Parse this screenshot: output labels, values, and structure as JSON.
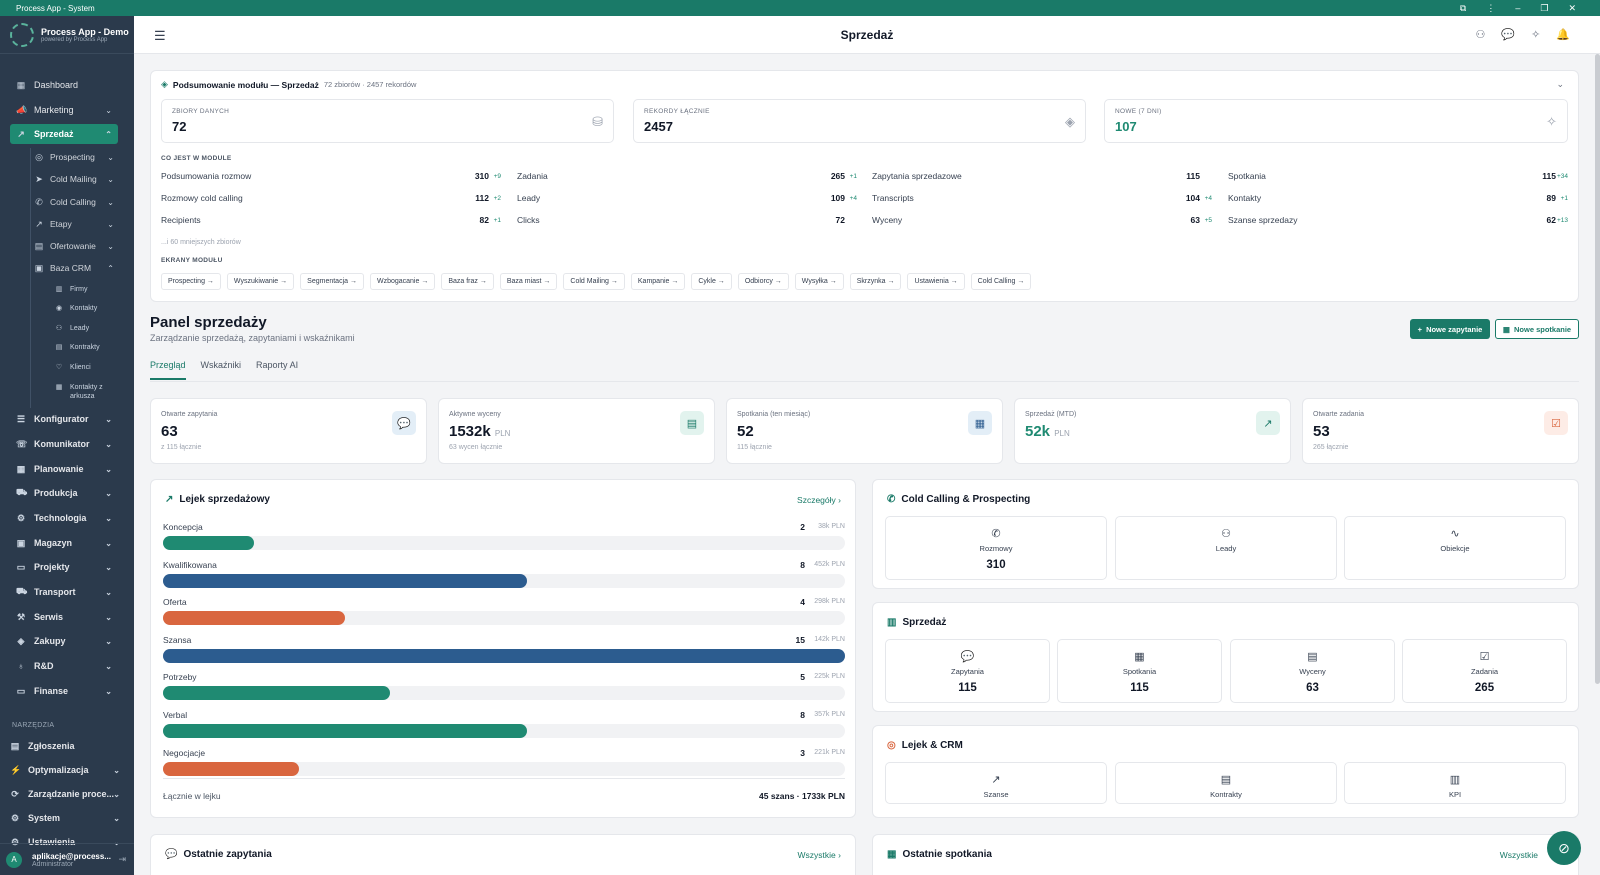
{
  "window": {
    "title": "Process App - System",
    "controls": [
      "⧉",
      "⋮",
      "–",
      "❐",
      "✕"
    ]
  },
  "brand": {
    "name": "Process App - Demo",
    "tagline": "powered by Process App"
  },
  "sidebar": {
    "items": [
      {
        "label": "Dashboard",
        "icon": "grid-icon",
        "glyph": "▦"
      },
      {
        "label": "Marketing",
        "icon": "megaphone-icon",
        "glyph": "📣"
      },
      {
        "label": "Sprzedaż",
        "icon": "trend-icon",
        "glyph": "↗"
      }
    ],
    "sprzedaz_sub": [
      {
        "label": "Prospecting",
        "glyph": "◎"
      },
      {
        "label": "Cold Mailing",
        "glyph": "➤"
      },
      {
        "label": "Cold Calling",
        "glyph": "✆"
      },
      {
        "label": "Etapy",
        "glyph": "↗"
      },
      {
        "label": "Ofertowanie",
        "glyph": "▤"
      },
      {
        "label": "Baza CRM",
        "glyph": "▣"
      }
    ],
    "crm_sub": [
      {
        "label": "Firmy",
        "glyph": "▥"
      },
      {
        "label": "Kontakty",
        "glyph": "◉"
      },
      {
        "label": "Leady",
        "glyph": "⚇"
      },
      {
        "label": "Kontrakty",
        "glyph": "▤"
      },
      {
        "label": "Klienci",
        "glyph": "♡"
      },
      {
        "label": "Kontakty z",
        "glyph": "▦"
      },
      {
        "label": "arkusza",
        "glyph": ""
      }
    ],
    "modules": [
      {
        "label": "Konfigurator",
        "glyph": "☰"
      },
      {
        "label": "Komunikator",
        "glyph": "☏"
      },
      {
        "label": "Planowanie",
        "glyph": "▦"
      },
      {
        "label": "Produkcja",
        "glyph": "⛟"
      },
      {
        "label": "Technologia",
        "glyph": "⚙"
      },
      {
        "label": "Magazyn",
        "glyph": "▣"
      },
      {
        "label": "Projekty",
        "glyph": "▭"
      },
      {
        "label": "Transport",
        "glyph": "⛟"
      },
      {
        "label": "Serwis",
        "glyph": "⚒"
      },
      {
        "label": "Zakupy",
        "glyph": "◈"
      },
      {
        "label": "R&D",
        "glyph": "♁"
      },
      {
        "label": "Finanse",
        "glyph": "▭"
      }
    ],
    "tools_label": "NARZĘDZIA",
    "tools": [
      {
        "label": "Zgłoszenia",
        "glyph": "▤"
      },
      {
        "label": "Optymalizacja",
        "glyph": "⚡"
      },
      {
        "label": "Zarządzanie proce...",
        "glyph": "⟳"
      },
      {
        "label": "System",
        "glyph": "⚙"
      },
      {
        "label": "Ustawienia",
        "glyph": "⚙"
      }
    ],
    "user": {
      "initial": "A",
      "email": "aplikacje@process...",
      "role": "Administrator"
    }
  },
  "topbar": {
    "title": "Sprzedaż"
  },
  "summary": {
    "title": "Podsumowanie modułu — Sprzedaż",
    "meta": "72 zbiorów · 2457 rekordów",
    "stats": [
      {
        "label": "ZBIORY DANYCH",
        "value": "72"
      },
      {
        "label": "REKORDY ŁĄCZNIE",
        "value": "2457"
      },
      {
        "label": "NOWE (7 DNI)",
        "value": "107"
      }
    ],
    "section_label": "CO JEST W MODULE",
    "rows": [
      {
        "name": "Podsumowania rozmow",
        "count": "310",
        "delta": "+9"
      },
      {
        "name": "Zadania",
        "count": "265",
        "delta": "+1"
      },
      {
        "name": "Zapytania sprzedazowe",
        "count": "115",
        "delta": ""
      },
      {
        "name": "Spotkania",
        "count": "115",
        "delta": "+34"
      },
      {
        "name": "Rozmowy cold calling",
        "count": "112",
        "delta": "+2"
      },
      {
        "name": "Leady",
        "count": "109",
        "delta": "+4"
      },
      {
        "name": "Transcripts",
        "count": "104",
        "delta": "+4"
      },
      {
        "name": "Kontakty",
        "count": "89",
        "delta": "+1"
      },
      {
        "name": "Recipients",
        "count": "82",
        "delta": "+1"
      },
      {
        "name": "Clicks",
        "count": "72",
        "delta": ""
      },
      {
        "name": "Wyceny",
        "count": "63",
        "delta": "+5"
      },
      {
        "name": "Szanse sprzedazy",
        "count": "62",
        "delta": "+13"
      }
    ],
    "more": "...i 60 mniejszych zbiorów",
    "screens_label": "EKRANY MODUŁU",
    "screens": [
      "Prospecting →",
      "Wyszukiwanie →",
      "Segmentacja →",
      "Wzbogacanie →",
      "Baza fraz →",
      "Baza miast →",
      "Cold Mailing →",
      "Kampanie →",
      "Cykle →",
      "Odbiorcy →",
      "Wysyłka →",
      "Skrzynka →",
      "Ustawienia →",
      "Cold Calling →"
    ]
  },
  "panel": {
    "title": "Panel sprzedaży",
    "subtitle": "Zarządzanie sprzedażą, zapytaniami i wskaźnikami",
    "btn_new_request": "Nowe zapytanie",
    "btn_new_meeting": "Nowe spotkanie",
    "tabs": [
      "Przegląd",
      "Wskaźniki",
      "Raporty AI"
    ]
  },
  "kpis": [
    {
      "label": "Otwarte zapytania",
      "value": "63",
      "unit": "",
      "sub": "z 115 łącznie",
      "glyph": "💬",
      "color": "#e3eef7",
      "icolor": "#2c5c8f"
    },
    {
      "label": "Aktywne wyceny",
      "value": "1532k",
      "unit": "PLN",
      "sub": "63 wycen łącznie",
      "glyph": "▤",
      "color": "#e2f3ee",
      "icolor": "#1a7a68"
    },
    {
      "label": "Spotkania (ten miesiąc)",
      "value": "52",
      "unit": "",
      "sub": "115 łącznie",
      "glyph": "▦",
      "color": "#e3eef7",
      "icolor": "#2c5c8f"
    },
    {
      "label": "Sprzedaż (MTD)",
      "value": "52k",
      "unit": "PLN",
      "sub": "",
      "glyph": "↗",
      "color": "#e2f3ee",
      "icolor": "#1a7a68"
    },
    {
      "label": "Otwarte zadania",
      "value": "53",
      "unit": "",
      "sub": "265 łącznie",
      "glyph": "☑",
      "color": "#fdece6",
      "icolor": "#d9663f"
    }
  ],
  "funnel": {
    "title": "Lejek sprzedażowy",
    "link": "Szczegóły",
    "stages": [
      {
        "name": "Koncepcja",
        "count": "2",
        "amount": "38k PLN",
        "fill": 0.133,
        "color": "#1f8a72"
      },
      {
        "name": "Kwalifikowana",
        "count": "8",
        "amount": "452k PLN",
        "fill": 0.533,
        "color": "#2c5c8f"
      },
      {
        "name": "Oferta",
        "count": "4",
        "amount": "298k PLN",
        "fill": 0.267,
        "color": "#d9663f"
      },
      {
        "name": "Szansa",
        "count": "15",
        "amount": "142k PLN",
        "fill": 1.0,
        "color": "#2c5c8f"
      },
      {
        "name": "Potrzeby",
        "count": "5",
        "amount": "225k PLN",
        "fill": 0.333,
        "color": "#1f8a72"
      },
      {
        "name": "Verbal",
        "count": "8",
        "amount": "357k PLN",
        "fill": 0.533,
        "color": "#1f8a72"
      },
      {
        "name": "Negocjacje",
        "count": "3",
        "amount": "221k PLN",
        "fill": 0.2,
        "color": "#d9663f"
      }
    ],
    "total_label": "Łącznie w lejku",
    "total_value": "45 szans · 1733k PLN"
  },
  "cold": {
    "title": "Cold Calling & Prospecting",
    "tiles": [
      {
        "label": "Rozmowy",
        "value": "310",
        "glyph": "✆"
      },
      {
        "label": "Leady",
        "value": "",
        "glyph": "⚇"
      },
      {
        "label": "Obiekcje",
        "value": "",
        "glyph": "∿"
      }
    ]
  },
  "sales": {
    "title": "Sprzedaż",
    "tiles": [
      {
        "label": "Zapytania",
        "value": "115",
        "glyph": "💬"
      },
      {
        "label": "Spotkania",
        "value": "115",
        "glyph": "▦"
      },
      {
        "label": "Wyceny",
        "value": "63",
        "glyph": "▤"
      },
      {
        "label": "Zadania",
        "value": "265",
        "glyph": "☑"
      }
    ]
  },
  "crm": {
    "title": "Lejek & CRM",
    "tiles": [
      {
        "label": "Szanse",
        "value": "",
        "glyph": "↗"
      },
      {
        "label": "Kontrakty",
        "value": "",
        "glyph": "▤"
      },
      {
        "label": "KPI",
        "value": "",
        "glyph": "▥"
      }
    ]
  },
  "recent_requests": {
    "title": "Ostatnie zapytania",
    "link": "Wszystkie"
  },
  "recent_meetings": {
    "title": "Ostatnie spotkania",
    "link": "Wszystkie"
  }
}
